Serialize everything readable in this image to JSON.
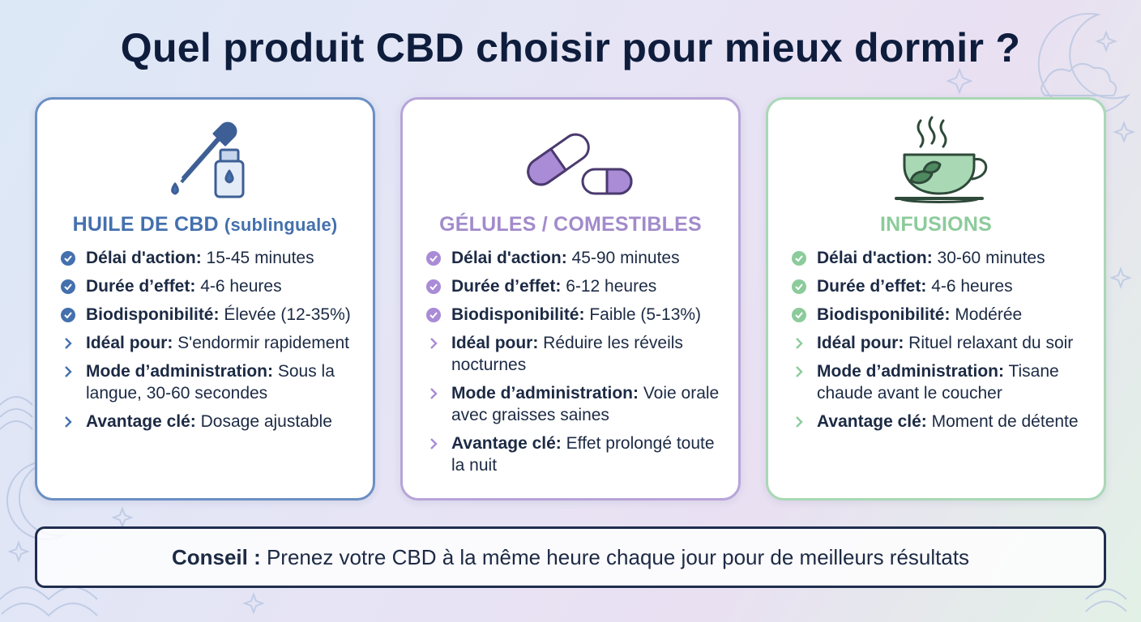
{
  "title": "Quel produit CBD choisir pour mieux dormir ?",
  "colors": {
    "blue": "#4470ad",
    "purple": "#a28bcb",
    "green": "#8ccb9b",
    "title": "#0f1d3d"
  },
  "cards": [
    {
      "icon": "dropper-bottle-icon",
      "title": "HUILE DE CBD",
      "subtitle": "(sublinguale)",
      "rows": [
        {
          "label": "Délai d'action:",
          "value": " 15-45 minutes"
        },
        {
          "label": "Durée d’effet:",
          "value": " 4-6 heures"
        },
        {
          "label": "Biodisponibilité:",
          "value": " Élevée (12-35%)"
        },
        {
          "label": "Idéal pour:",
          "value": " S'endormir rapidement"
        },
        {
          "label": "Mode d’administration:",
          "value": " Sous la langue, 30-60 secondes"
        },
        {
          "label": "Avantage clé:",
          "value": " Dosage ajustable"
        }
      ]
    },
    {
      "icon": "capsule-pill-icon",
      "title": "GÉLULES / COMESTIBLES",
      "subtitle": "",
      "rows": [
        {
          "label": "Délai d'action:",
          "value": " 45-90 minutes"
        },
        {
          "label": "Durée d’effet:",
          "value": " 6-12 heures"
        },
        {
          "label": "Biodisponibilité:",
          "value": " Faible (5-13%)"
        },
        {
          "label": "Idéal pour:",
          "value": " Réduire les réveils nocturnes"
        },
        {
          "label": "Mode d’administration:",
          "value": " Voie orale avec graisses saines"
        },
        {
          "label": "Avantage clé:",
          "value": " Effet prolongé toute la nuit"
        }
      ]
    },
    {
      "icon": "tea-cup-icon",
      "title": "INFUSIONS",
      "subtitle": "",
      "rows": [
        {
          "label": "Délai d'action:",
          "value": " 30-60 minutes"
        },
        {
          "label": "Durée d’effet:",
          "value": " 4-6 heures"
        },
        {
          "label": "Biodisponibilité:",
          "value": " Modérée"
        },
        {
          "label": "Idéal pour:",
          "value": " Rituel relaxant du soir"
        },
        {
          "label": "Mode d’administration:",
          "value": " Tisane chaude avant le coucher"
        },
        {
          "label": "Avantage clé:",
          "value": " Moment de détente"
        }
      ]
    }
  ],
  "tip": {
    "label": "Conseil :",
    "text": " Prenez votre CBD à la même heure chaque jour pour de meilleurs résultats"
  }
}
